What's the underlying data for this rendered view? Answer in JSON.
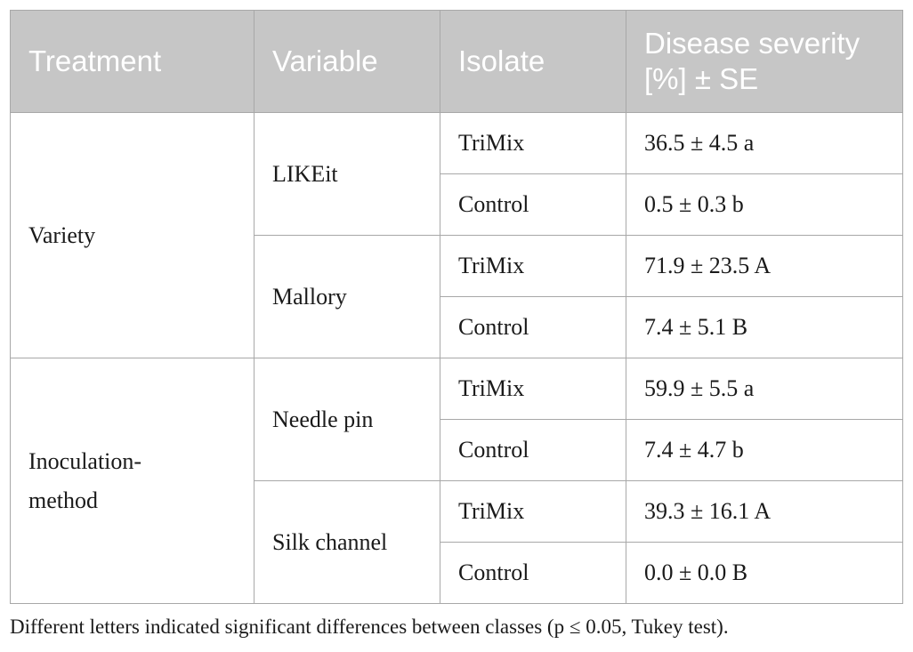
{
  "table": {
    "headers": {
      "treatment": "Treatment",
      "variable": "Variable",
      "isolate": "Isolate",
      "severity_line1": "Disease severity",
      "severity_line2": "[%] ± SE"
    },
    "groups": [
      {
        "treatment": "Variety",
        "variables": [
          {
            "name": "LIKEit",
            "rows": [
              {
                "isolate": "TriMix",
                "severity": "36.5 ± 4.5 a"
              },
              {
                "isolate": "Control",
                "severity": "0.5 ± 0.3 b"
              }
            ]
          },
          {
            "name": "Mallory",
            "rows": [
              {
                "isolate": "TriMix",
                "severity": "71.9 ± 23.5 A"
              },
              {
                "isolate": "Control",
                "severity": "7.4 ± 5.1 B"
              }
            ]
          }
        ]
      },
      {
        "treatment_line1": "Inoculation-",
        "treatment_line2": "method",
        "variables": [
          {
            "name": "Needle pin",
            "rows": [
              {
                "isolate": "TriMix",
                "severity": "59.9 ± 5.5 a"
              },
              {
                "isolate": "Control",
                "severity": "7.4 ± 4.7 b"
              }
            ]
          },
          {
            "name": "Silk channel",
            "rows": [
              {
                "isolate": "TriMix",
                "severity": "39.3 ± 16.1 A"
              },
              {
                "isolate": "Control",
                "severity": "0.0 ± 0.0 B"
              }
            ]
          }
        ]
      }
    ]
  },
  "footnote": "Different letters indicated significant differences between classes (p ≤ 0.05, Tukey test)."
}
